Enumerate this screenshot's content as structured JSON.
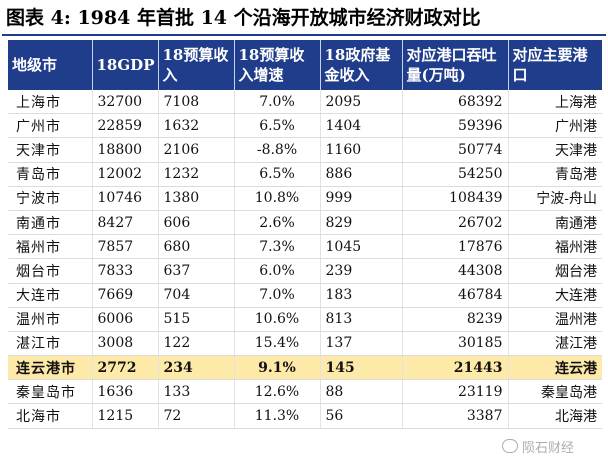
{
  "figure": {
    "title": "图表 4:  1984 年首批 14 个沿海开放城市经济财政对比"
  },
  "table": {
    "headers": [
      "地级市",
      "18GDP",
      "18预算收入",
      "18预算收入增速",
      "18政府基金收入",
      "对应港口吞吐量(万吨)",
      "对应主要港口"
    ],
    "rows": [
      [
        "上海市",
        "32700",
        "7108",
        "7.0%",
        "2095",
        "68392",
        "上海港"
      ],
      [
        "广州市",
        "22859",
        "1632",
        "6.5%",
        "1404",
        "59396",
        "广州港"
      ],
      [
        "天津市",
        "18800",
        "2106",
        "-8.8%",
        "1160",
        "50774",
        "天津港"
      ],
      [
        "青岛市",
        "12002",
        "1232",
        "6.5%",
        "886",
        "54250",
        "青岛港"
      ],
      [
        "宁波市",
        "10746",
        "1380",
        "10.8%",
        "999",
        "108439",
        "宁波-舟山"
      ],
      [
        "南通市",
        "8427",
        "606",
        "2.6%",
        "829",
        "26702",
        "南通港"
      ],
      [
        "福州市",
        "7857",
        "680",
        "7.3%",
        "1045",
        "17876",
        "福州港"
      ],
      [
        "烟台市",
        "7833",
        "637",
        "6.0%",
        "239",
        "44308",
        "烟台港"
      ],
      [
        "大连市",
        "7669",
        "704",
        "7.0%",
        "183",
        "46784",
        "大连港"
      ],
      [
        "温州市",
        "6006",
        "515",
        "10.6%",
        "813",
        "8239",
        "温州港"
      ],
      [
        "湛江市",
        "3008",
        "122",
        "15.4%",
        "137",
        "30185",
        "湛江港"
      ],
      [
        "连云港市",
        "2772",
        "234",
        "9.1%",
        "145",
        "21443",
        "连云港"
      ],
      [
        "秦皇岛市",
        "1636",
        "133",
        "12.6%",
        "88",
        "23119",
        "秦皇岛港"
      ],
      [
        "北海市",
        "1215",
        "72",
        "11.3%",
        "56",
        "3387",
        "北海港"
      ]
    ],
    "highlight_row": 11
  },
  "watermark": {
    "text": "陨石财经",
    "icon": "wechat-icon"
  },
  "colors": {
    "header_bg": "#1f3d8a",
    "header_text": "#ffffff",
    "highlight_bg": "#fde9a8"
  }
}
